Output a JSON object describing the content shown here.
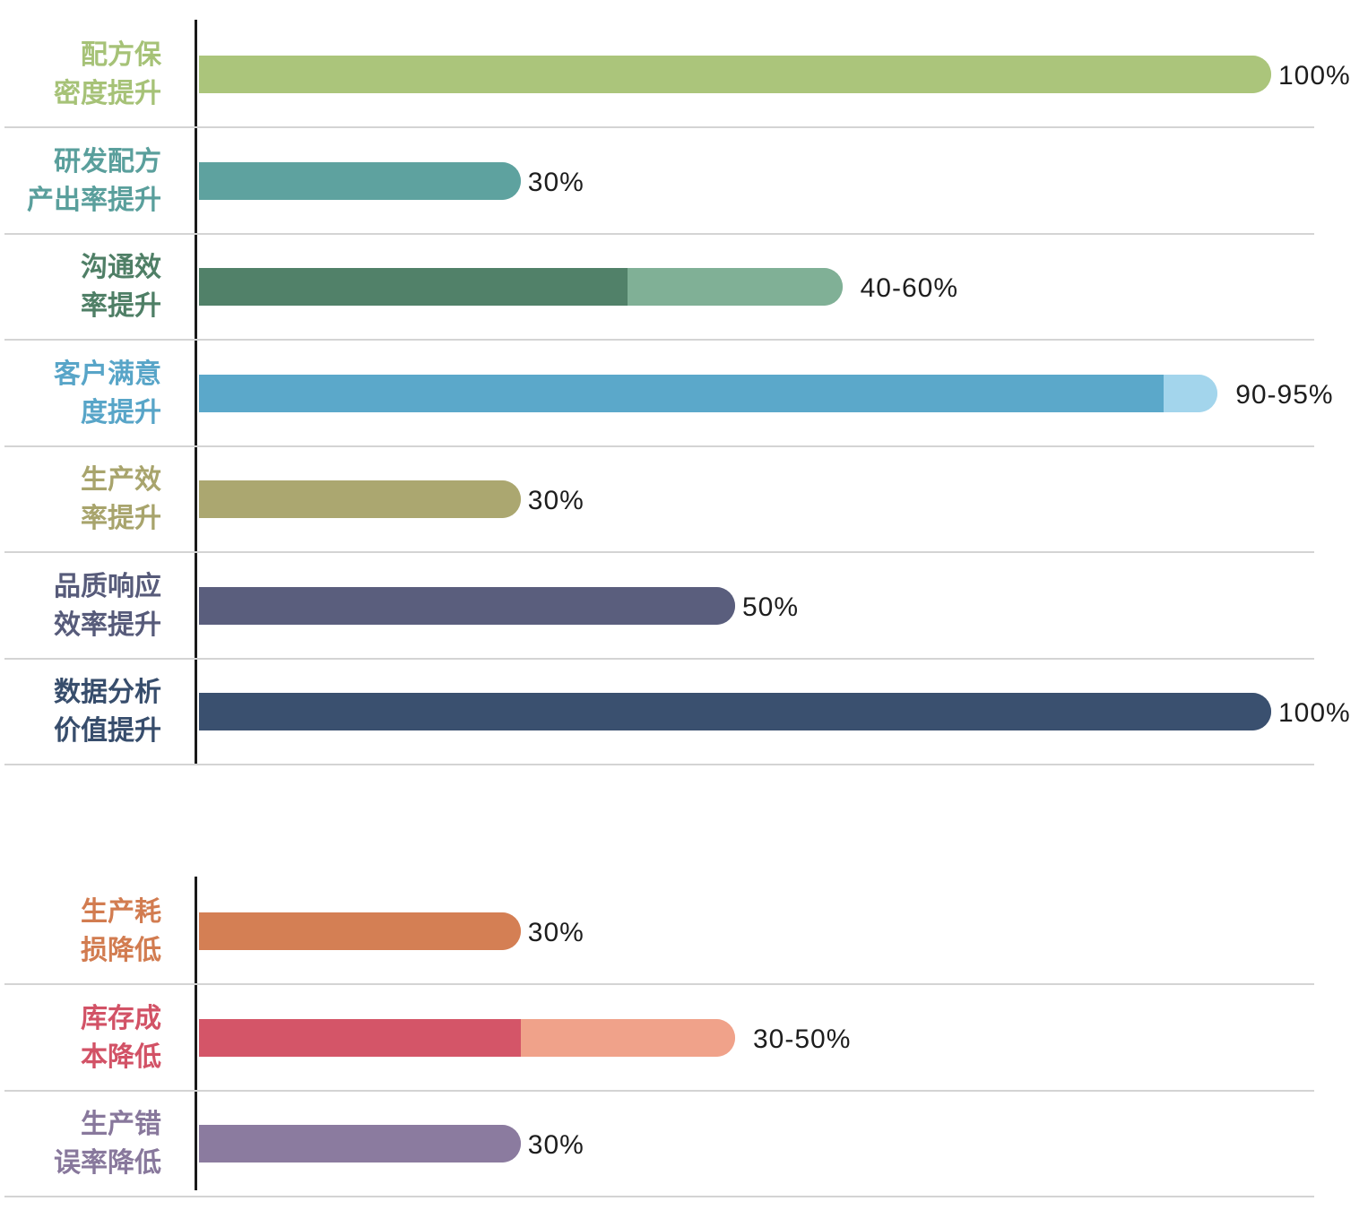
{
  "chart_data": [
    {
      "type": "bar",
      "orientation": "horizontal",
      "xlim": [
        0,
        100
      ],
      "unit": "%",
      "grid": false,
      "bars": [
        {
          "label": [
            "配方保",
            "密度提升"
          ],
          "low": 100,
          "high": 100,
          "value_label": "100%",
          "color": "#abc57b",
          "light_color": "#abc57b",
          "label_color": "#a6c277"
        },
        {
          "label": [
            "研发配方",
            "产出率提升"
          ],
          "low": 30,
          "high": 30,
          "value_label": "30%",
          "color": "#5ea29f",
          "light_color": "#5ea29f",
          "label_color": "#5a9f9c"
        },
        {
          "label": [
            "沟通效",
            "率提升"
          ],
          "low": 40,
          "high": 60,
          "value_label": "40-60%",
          "color": "#518169",
          "light_color": "#80b096",
          "label_color": "#4f7f66"
        },
        {
          "label": [
            "客户满意",
            "度提升"
          ],
          "low": 90,
          "high": 95,
          "value_label": "90-95%",
          "color": "#5ba8ca",
          "light_color": "#a3d5ec",
          "label_color": "#58a5c8"
        },
        {
          "label": [
            "生产效",
            "率提升"
          ],
          "low": 30,
          "high": 30,
          "value_label": "30%",
          "color": "#aba770",
          "light_color": "#aba770",
          "label_color": "#a8a46c"
        },
        {
          "label": [
            "品质响应",
            "效率提升"
          ],
          "low": 50,
          "high": 50,
          "value_label": "50%",
          "color": "#5a5e7d",
          "light_color": "#5a5e7d",
          "label_color": "#575b7a"
        },
        {
          "label": [
            "数据分析",
            "价值提升"
          ],
          "low": 100,
          "high": 100,
          "value_label": "100%",
          "color": "#3a506f",
          "light_color": "#3a506f",
          "label_color": "#374d6c"
        }
      ]
    },
    {
      "type": "bar",
      "orientation": "horizontal",
      "xlim": [
        0,
        100
      ],
      "unit": "%",
      "grid": false,
      "bars": [
        {
          "label": [
            "生产耗",
            "损降低"
          ],
          "low": 30,
          "high": 30,
          "value_label": "30%",
          "color": "#d47f54",
          "light_color": "#d47f54",
          "label_color": "#d27c50"
        },
        {
          "label": [
            "库存成",
            "本降低"
          ],
          "low": 30,
          "high": 50,
          "value_label": "30-50%",
          "color": "#d45568",
          "light_color": "#f0a28a",
          "label_color": "#d25266"
        },
        {
          "label": [
            "生产错",
            "误率降低"
          ],
          "low": 30,
          "high": 30,
          "value_label": "30%",
          "color": "#8b7b9f",
          "light_color": "#8b7b9f",
          "label_color": "#88789c"
        }
      ]
    }
  ]
}
